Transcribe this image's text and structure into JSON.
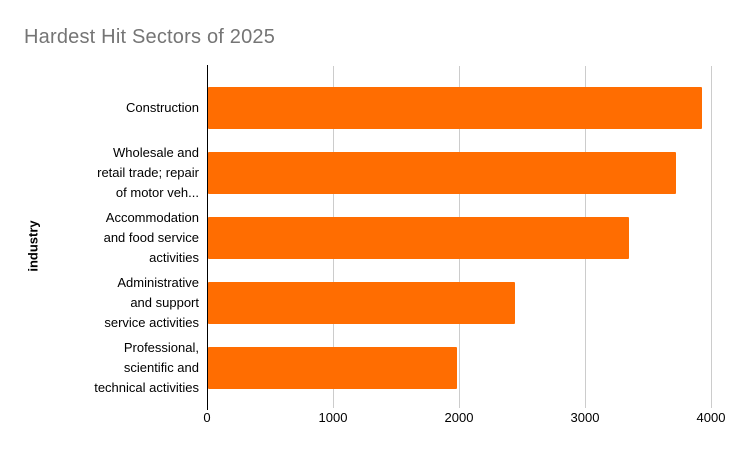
{
  "title": "Hardest Hit Sectors of 2025",
  "y_axis_title": "industry",
  "colors": {
    "bar": "#FF6D01",
    "title_text": "#757575",
    "axis_line": "#000000",
    "gridline": "#CCCCCC",
    "tick_text": "#000000",
    "label_text": "#000000",
    "background": "#FFFFFF"
  },
  "chart_data": {
    "type": "bar",
    "orientation": "horizontal",
    "title": "Hardest Hit Sectors of 2025",
    "xlabel": "",
    "ylabel": "industry",
    "categories": [
      "Construction",
      "Wholesale and retail trade; repair of motor veh...",
      "Accommodation and food service activities",
      "Administrative and support service activities",
      "Professional, scientific and technical activities"
    ],
    "display_labels": [
      "Construction",
      "Wholesale and\nretail trade; repair\nof motor veh...",
      "Accommodation\nand food service\nactivities",
      "Administrative\nand support\nservice activities",
      "Professional,\nscientific and\ntechnical activities"
    ],
    "values": [
      3930,
      3720,
      3350,
      2440,
      1980
    ],
    "xlim": [
      0,
      4000
    ],
    "x_ticks": [
      0,
      1000,
      2000,
      3000,
      4000
    ],
    "grid": true,
    "legend": false
  }
}
